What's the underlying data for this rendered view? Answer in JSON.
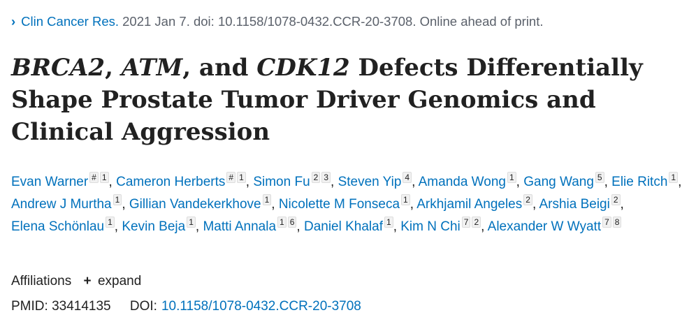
{
  "citation": {
    "chevron_glyph": "›",
    "journal": "Clin Cancer Res.",
    "details": "2021 Jan 7. doi: 10.1158/1078-0432.CCR-20-3708. Online ahead of print."
  },
  "title": {
    "gene1": "BRCA2",
    "sep1": ", ",
    "gene2": "ATM",
    "sep2": ", and ",
    "gene3": "CDK12",
    "rest": " Defects Differentially Shape Prostate Tumor Driver Genomics and Clinical Aggression"
  },
  "authors": [
    {
      "name": "Evan Warner",
      "marks": [
        "#",
        "1"
      ]
    },
    {
      "name": "Cameron Herberts",
      "marks": [
        "#",
        "1"
      ]
    },
    {
      "name": "Simon Fu",
      "marks": [
        "2",
        "3"
      ]
    },
    {
      "name": "Steven Yip",
      "marks": [
        "4"
      ]
    },
    {
      "name": "Amanda Wong",
      "marks": [
        "1"
      ]
    },
    {
      "name": "Gang Wang",
      "marks": [
        "5"
      ]
    },
    {
      "name": "Elie Ritch",
      "marks": [
        "1"
      ]
    },
    {
      "name": "Andrew J Murtha",
      "marks": [
        "1"
      ]
    },
    {
      "name": "Gillian Vandekerkhove",
      "marks": [
        "1"
      ]
    },
    {
      "name": "Nicolette M Fonseca",
      "marks": [
        "1"
      ]
    },
    {
      "name": "Arkhjamil Angeles",
      "marks": [
        "2"
      ]
    },
    {
      "name": "Arshia Beigi",
      "marks": [
        "2"
      ]
    },
    {
      "name": "Elena Schönlau",
      "marks": [
        "1"
      ]
    },
    {
      "name": "Kevin Beja",
      "marks": [
        "1"
      ]
    },
    {
      "name": "Matti Annala",
      "marks": [
        "1",
        "6"
      ]
    },
    {
      "name": "Daniel Khalaf",
      "marks": [
        "1"
      ]
    },
    {
      "name": "Kim N Chi",
      "marks": [
        "7",
        "2"
      ]
    },
    {
      "name": "Alexander W Wyatt",
      "marks": [
        "7",
        "8"
      ]
    }
  ],
  "affiliations": {
    "label": "Affiliations",
    "expand_icon": "plus-icon",
    "expand_glyph": "+",
    "expand_label": "expand"
  },
  "identifiers": {
    "pmid_label": "PMID:",
    "pmid": "33414135",
    "doi_label": "DOI:",
    "doi": "10.1158/1078-0432.CCR-20-3708"
  },
  "colors": {
    "link": "#0071bc",
    "text": "#212121",
    "muted": "#5b616b"
  }
}
